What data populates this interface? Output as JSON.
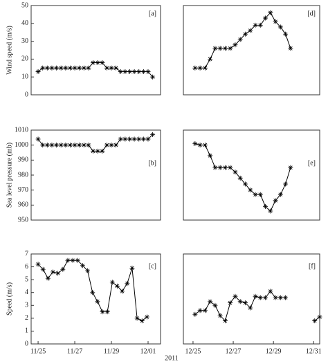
{
  "chart_data": [
    {
      "type": "line",
      "ylabel": "Wind speed (m/s)",
      "annotation": "[a]",
      "x": [
        0,
        0.25,
        0.5,
        0.75,
        1,
        1.25,
        1.5,
        1.75,
        2,
        2.25,
        2.5,
        2.75,
        3,
        3.25,
        3.5,
        3.75,
        4,
        4.25,
        4.5,
        4.75,
        5,
        5.25,
        5.5,
        5.75,
        6,
        6.25
      ],
      "values": [
        13,
        15,
        15,
        15,
        15,
        15,
        15,
        15,
        15,
        15,
        15,
        15,
        18,
        18,
        18,
        15,
        15,
        15,
        13,
        13,
        13,
        13,
        13,
        13,
        13,
        10
      ],
      "color": "#000000",
      "xlim": [
        -0.38,
        6.68
      ],
      "ylim": [
        0,
        50
      ],
      "yticks": [
        0,
        10,
        20,
        30,
        40,
        50
      ]
    },
    {
      "type": "line",
      "annotation": "[d]",
      "x": [
        0.1,
        0.35,
        0.6,
        0.85,
        1.1,
        1.35,
        1.6,
        1.85,
        2.1,
        2.35,
        2.6,
        2.85,
        3.1,
        3.35,
        3.6,
        3.85,
        4.1,
        4.35,
        4.6,
        4.85
      ],
      "values": [
        15,
        15,
        15,
        20,
        26,
        26,
        26,
        26,
        28,
        31,
        34,
        36,
        39,
        39,
        43,
        46,
        41,
        38,
        34,
        26
      ],
      "color": "#000000",
      "xlim": [
        -0.48,
        6.3
      ],
      "ylim": [
        0,
        50
      ]
    },
    {
      "type": "line",
      "ylabel": "Sea level pressure (mb)",
      "annotation": "[b]",
      "x": [
        0,
        0.25,
        0.5,
        0.75,
        1,
        1.25,
        1.5,
        1.75,
        2,
        2.25,
        2.5,
        2.75,
        3,
        3.25,
        3.5,
        3.75,
        4,
        4.25,
        4.5,
        4.75,
        5,
        5.25,
        5.5,
        5.75,
        6,
        6.25
      ],
      "values": [
        1004,
        1000,
        1000,
        1000,
        1000,
        1000,
        1000,
        1000,
        1000,
        1000,
        1000,
        1000,
        996,
        996,
        996,
        1000,
        1000,
        1000,
        1004,
        1004,
        1004,
        1004,
        1004,
        1004,
        1004,
        1007
      ],
      "color": "#000000",
      "xlim": [
        -0.38,
        6.68
      ],
      "ylim": [
        950,
        1010
      ],
      "yticks": [
        950,
        960,
        970,
        980,
        990,
        1000,
        1010
      ]
    },
    {
      "type": "line",
      "annotation": "[e]",
      "x": [
        0.1,
        0.35,
        0.6,
        0.85,
        1.1,
        1.35,
        1.6,
        1.85,
        2.1,
        2.35,
        2.6,
        2.85,
        3.1,
        3.35,
        3.6,
        3.85,
        4.1,
        4.35,
        4.6,
        4.85
      ],
      "values": [
        1001,
        1000,
        1000,
        993,
        985,
        985,
        985,
        985,
        982,
        978,
        974,
        970,
        967,
        967,
        959,
        956,
        963,
        967,
        974,
        985
      ],
      "color": "#000000",
      "xlim": [
        -0.48,
        6.3
      ],
      "ylim": [
        950,
        1010
      ]
    },
    {
      "type": "line",
      "ylabel": "Speed (m/s)",
      "annotation": "[c]",
      "xlabel": "2011",
      "x": [
        0,
        0.27,
        0.54,
        0.81,
        1.08,
        1.35,
        1.62,
        1.89,
        2.16,
        2.43,
        2.7,
        2.97,
        3.24,
        3.51,
        3.78,
        4.05,
        4.32,
        4.59,
        4.86,
        5.13,
        5.4,
        5.67,
        5.94
      ],
      "values": [
        6.2,
        5.8,
        5.1,
        5.6,
        5.5,
        5.8,
        6.5,
        6.5,
        6.5,
        6.1,
        5.7,
        4.0,
        3.3,
        2.5,
        2.5,
        4.8,
        4.5,
        4.1,
        4.7,
        5.9,
        2.0,
        1.8,
        2.1
      ],
      "color": "#000000",
      "xlim": [
        -0.38,
        6.68
      ],
      "ylim": [
        0,
        7
      ],
      "yticks": [
        0,
        1,
        2,
        3,
        4,
        5,
        6,
        7
      ],
      "xticks": [
        {
          "value": 0,
          "label": "11/25"
        },
        {
          "value": 2,
          "label": "11/27"
        },
        {
          "value": 4,
          "label": "11/29"
        },
        {
          "value": 6,
          "label": "12/01"
        }
      ]
    },
    {
      "type": "line",
      "annotation": "[f]",
      "x": [
        0.1,
        0.35,
        0.6,
        0.85,
        1.1,
        1.35,
        1.6,
        1.85,
        2.1,
        2.35,
        2.6,
        2.85,
        3.1,
        3.35,
        3.6,
        3.85,
        4.1,
        4.35,
        4.6,
        5.0,
        6.05,
        6.3
      ],
      "values": [
        2.3,
        2.6,
        2.6,
        3.3,
        3.0,
        2.2,
        1.8,
        3.2,
        3.7,
        3.3,
        3.2,
        2.8,
        3.7,
        3.6,
        3.6,
        4.1,
        3.6,
        3.6,
        3.6,
        null,
        1.8,
        2.1
      ],
      "color": "#000000",
      "xlim": [
        -0.48,
        6.3
      ],
      "ylim": [
        0,
        7
      ],
      "xticks": [
        {
          "value": 0,
          "label": "12/25"
        },
        {
          "value": 2,
          "label": "12/27"
        },
        {
          "value": 4,
          "label": "12/29"
        },
        {
          "value": 6,
          "label": "12/31"
        }
      ]
    }
  ]
}
